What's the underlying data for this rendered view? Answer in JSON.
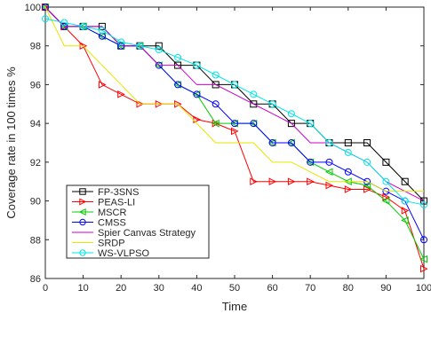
{
  "chart_data": {
    "type": "line",
    "title": "",
    "xlabel": "Time",
    "ylabel": "Coverage rate in 100 times %",
    "xlim": [
      0,
      100
    ],
    "ylim": [
      86,
      100
    ],
    "xticks": [
      0,
      10,
      20,
      30,
      40,
      50,
      60,
      70,
      80,
      90,
      100
    ],
    "yticks": [
      86,
      88,
      90,
      92,
      94,
      96,
      98,
      100
    ],
    "grid": false,
    "legend_position": "lower-left",
    "series": [
      {
        "name": "FP-3SNS",
        "color": "#000000",
        "marker": "square",
        "x": [
          0,
          5,
          10,
          15,
          20,
          25,
          30,
          35,
          40,
          45,
          50,
          55,
          60,
          65,
          70,
          75,
          80,
          85,
          90,
          95,
          100
        ],
        "y": [
          100,
          99,
          99,
          99,
          98,
          98,
          98,
          97,
          97,
          96,
          96,
          95,
          95,
          94,
          94,
          93,
          93,
          93,
          92,
          91,
          90
        ]
      },
      {
        "name": "PEAS-LI",
        "color": "#ff0000",
        "marker": "triangle-right",
        "x": [
          0,
          5,
          10,
          15,
          20,
          25,
          30,
          35,
          40,
          45,
          50,
          55,
          60,
          65,
          70,
          75,
          80,
          85,
          90,
          95,
          100
        ],
        "y": [
          100,
          99,
          98,
          96,
          95.5,
          95,
          95,
          95,
          94.2,
          94,
          93.6,
          91,
          91,
          91,
          91,
          90.8,
          90.6,
          90.6,
          90.2,
          89.5,
          86.5
        ]
      },
      {
        "name": "MSCR",
        "color": "#00cc00",
        "marker": "triangle-left",
        "x": [
          0,
          5,
          10,
          15,
          20,
          25,
          30,
          35,
          40,
          45,
          50,
          55,
          60,
          65,
          70,
          75,
          80,
          85,
          90,
          95,
          100
        ],
        "y": [
          100,
          99,
          99,
          98.5,
          98,
          98,
          97,
          96,
          95.5,
          94,
          94,
          94,
          93,
          93,
          92,
          91.5,
          91,
          90.8,
          90,
          89,
          87
        ]
      },
      {
        "name": "CMSS",
        "color": "#0000ff",
        "marker": "circle",
        "x": [
          0,
          5,
          10,
          15,
          20,
          25,
          30,
          35,
          40,
          45,
          50,
          55,
          60,
          65,
          70,
          75,
          80,
          85,
          90,
          95,
          100
        ],
        "y": [
          100,
          99,
          99,
          98.5,
          98,
          98,
          97,
          96,
          95.5,
          95,
          94,
          94,
          93,
          93,
          92,
          92,
          91.5,
          91,
          90.5,
          90,
          88
        ]
      },
      {
        "name": "Spier Canvas Strategy",
        "color": "#cc00cc",
        "marker": "none",
        "x": [
          0,
          5,
          10,
          15,
          20,
          25,
          30,
          35,
          40,
          45,
          50,
          55,
          60,
          65,
          70,
          75,
          80,
          85,
          90,
          95,
          100
        ],
        "y": [
          100,
          99,
          99,
          99,
          98,
          98,
          97,
          97,
          96,
          96,
          95.5,
          95,
          94.5,
          94,
          93,
          93,
          92.5,
          92,
          91,
          90.5,
          90
        ]
      },
      {
        "name": "SRDP",
        "color": "#e6e600",
        "marker": "none",
        "x": [
          0,
          5,
          10,
          15,
          20,
          25,
          30,
          35,
          40,
          45,
          50,
          55,
          60,
          65,
          70,
          75,
          80,
          85,
          90,
          95,
          100
        ],
        "y": [
          100,
          98,
          98,
          97,
          96,
          95,
          95,
          95,
          94,
          93,
          93,
          93,
          92,
          92,
          91.5,
          91,
          91,
          91,
          90.5,
          90.5,
          90.5
        ]
      },
      {
        "name": "WS-VLPSO",
        "color": "#00e5e5",
        "marker": "circle",
        "x": [
          0,
          5,
          10,
          15,
          20,
          25,
          30,
          35,
          40,
          45,
          50,
          55,
          60,
          65,
          70,
          75,
          80,
          85,
          90,
          95,
          100
        ],
        "y": [
          99.4,
          99.2,
          99,
          98.8,
          98.2,
          98,
          97.8,
          97.4,
          97,
          96.5,
          96,
          95.5,
          95,
          94.5,
          94,
          93,
          92.5,
          92,
          91,
          90,
          89.8
        ]
      }
    ]
  }
}
